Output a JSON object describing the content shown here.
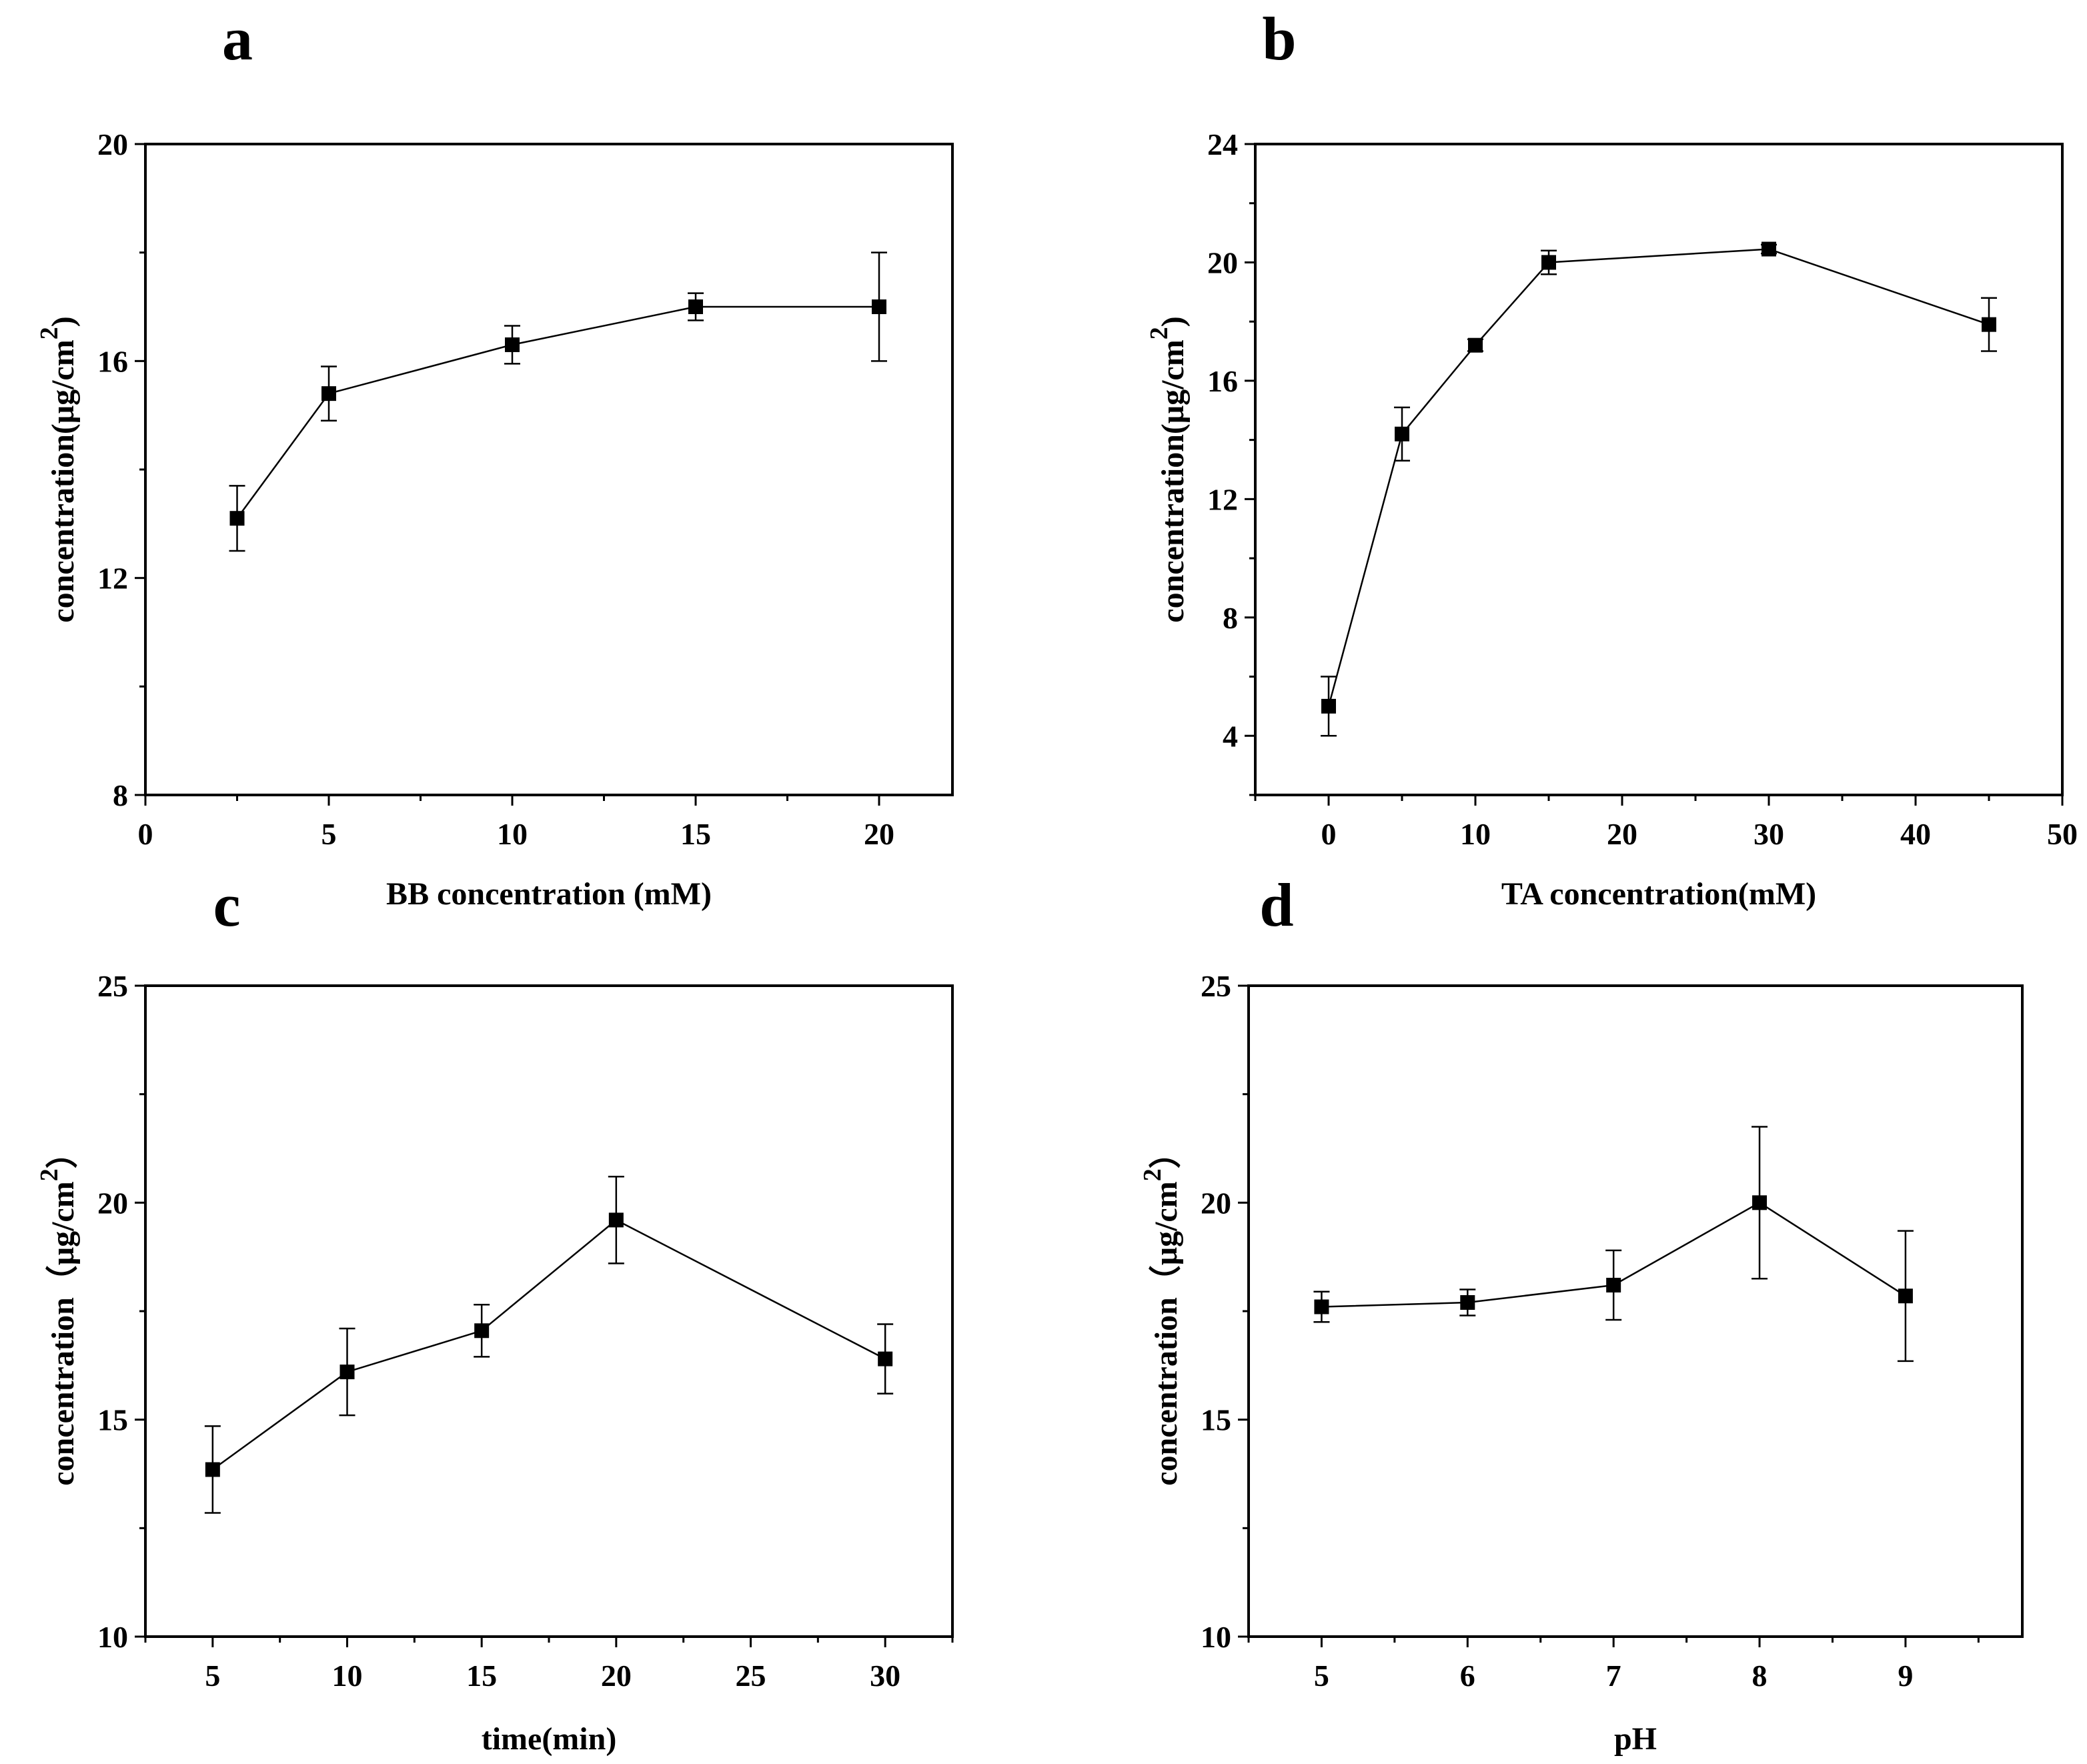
{
  "figure": {
    "panels": [
      "a",
      "b",
      "c",
      "d"
    ]
  },
  "chart_data": [
    {
      "id": "a",
      "type": "line",
      "panel_label": "a",
      "title": "",
      "xlabel": "BB concentration (mM)",
      "ylabel_main": "concentration(μg/cm",
      "ylabel_sup": "2",
      "ylabel_close": ")",
      "xlim": [
        0,
        22
      ],
      "ylim": [
        8,
        20
      ],
      "xticks": [
        0,
        5,
        10,
        15,
        20
      ],
      "xtick_labels": [
        "0",
        "5",
        "10",
        "15",
        "20"
      ],
      "yticks": [
        8,
        12,
        16,
        20
      ],
      "ytick_labels": [
        "8",
        "12",
        "16",
        "20"
      ],
      "series": [
        {
          "name": "BB concentration",
          "x": [
            2.5,
            5,
            10,
            15,
            20
          ],
          "y": [
            13.1,
            15.4,
            16.3,
            17.0,
            17.0
          ],
          "error": [
            0.6,
            0.5,
            0.35,
            0.25,
            1.0
          ]
        }
      ]
    },
    {
      "id": "b",
      "type": "line",
      "panel_label": "b",
      "title": "",
      "xlabel": "TA concentration(mM)",
      "ylabel_main": "concentration(μg/cm",
      "ylabel_sup": "2",
      "ylabel_close": ")",
      "xlim": [
        -5,
        50
      ],
      "ylim": [
        2,
        24
      ],
      "xticks": [
        0,
        10,
        20,
        30,
        40,
        50
      ],
      "xtick_labels": [
        "0",
        "10",
        "20",
        "30",
        "40",
        "50"
      ],
      "yticks": [
        4,
        8,
        12,
        16,
        20,
        24
      ],
      "ytick_labels": [
        "4",
        "8",
        "12",
        "16",
        "20",
        "24"
      ],
      "series": [
        {
          "name": "TA concentration",
          "x": [
            0,
            5,
            10,
            15,
            30,
            45
          ],
          "y": [
            5.0,
            14.2,
            17.2,
            20.0,
            20.45,
            17.9
          ],
          "error": [
            1.0,
            0.9,
            0.2,
            0.4,
            0.15,
            0.9
          ]
        }
      ]
    },
    {
      "id": "c",
      "type": "line",
      "panel_label": "c",
      "title": "",
      "xlabel": "time(min)",
      "ylabel_main": "concentration（μg/cm",
      "ylabel_sup": "2",
      "ylabel_close": "）",
      "xlim": [
        2.5,
        32.5
      ],
      "ylim": [
        10,
        25
      ],
      "xticks": [
        5,
        10,
        15,
        20,
        25,
        30
      ],
      "xtick_labels": [
        "5",
        "10",
        "15",
        "20",
        "25",
        "30"
      ],
      "yticks": [
        10,
        15,
        20,
        25
      ],
      "ytick_labels": [
        "10",
        "15",
        "20",
        "25"
      ],
      "series": [
        {
          "name": "time",
          "x": [
            5,
            10,
            15,
            20,
            30
          ],
          "y": [
            13.85,
            16.1,
            17.05,
            19.6,
            16.4
          ],
          "error": [
            1.0,
            1.0,
            0.6,
            1.0,
            0.8
          ]
        }
      ]
    },
    {
      "id": "d",
      "type": "line",
      "panel_label": "d",
      "title": "",
      "xlabel": "pH",
      "ylabel_main": "concentration（μg/cm",
      "ylabel_sup": "2",
      "ylabel_close": "）",
      "xlim": [
        4.5,
        9.8
      ],
      "ylim": [
        10,
        25
      ],
      "xticks": [
        5,
        6,
        7,
        8,
        9
      ],
      "xtick_labels": [
        "5",
        "6",
        "7",
        "8",
        "9"
      ],
      "yticks": [
        10,
        15,
        20,
        25
      ],
      "ytick_labels": [
        "10",
        "15",
        "20",
        "25"
      ],
      "series": [
        {
          "name": "pH",
          "x": [
            5,
            6,
            7,
            8,
            9
          ],
          "y": [
            17.6,
            17.7,
            18.1,
            20.0,
            17.85
          ],
          "error": [
            0.35,
            0.3,
            0.8,
            1.75,
            1.5
          ]
        }
      ]
    }
  ]
}
